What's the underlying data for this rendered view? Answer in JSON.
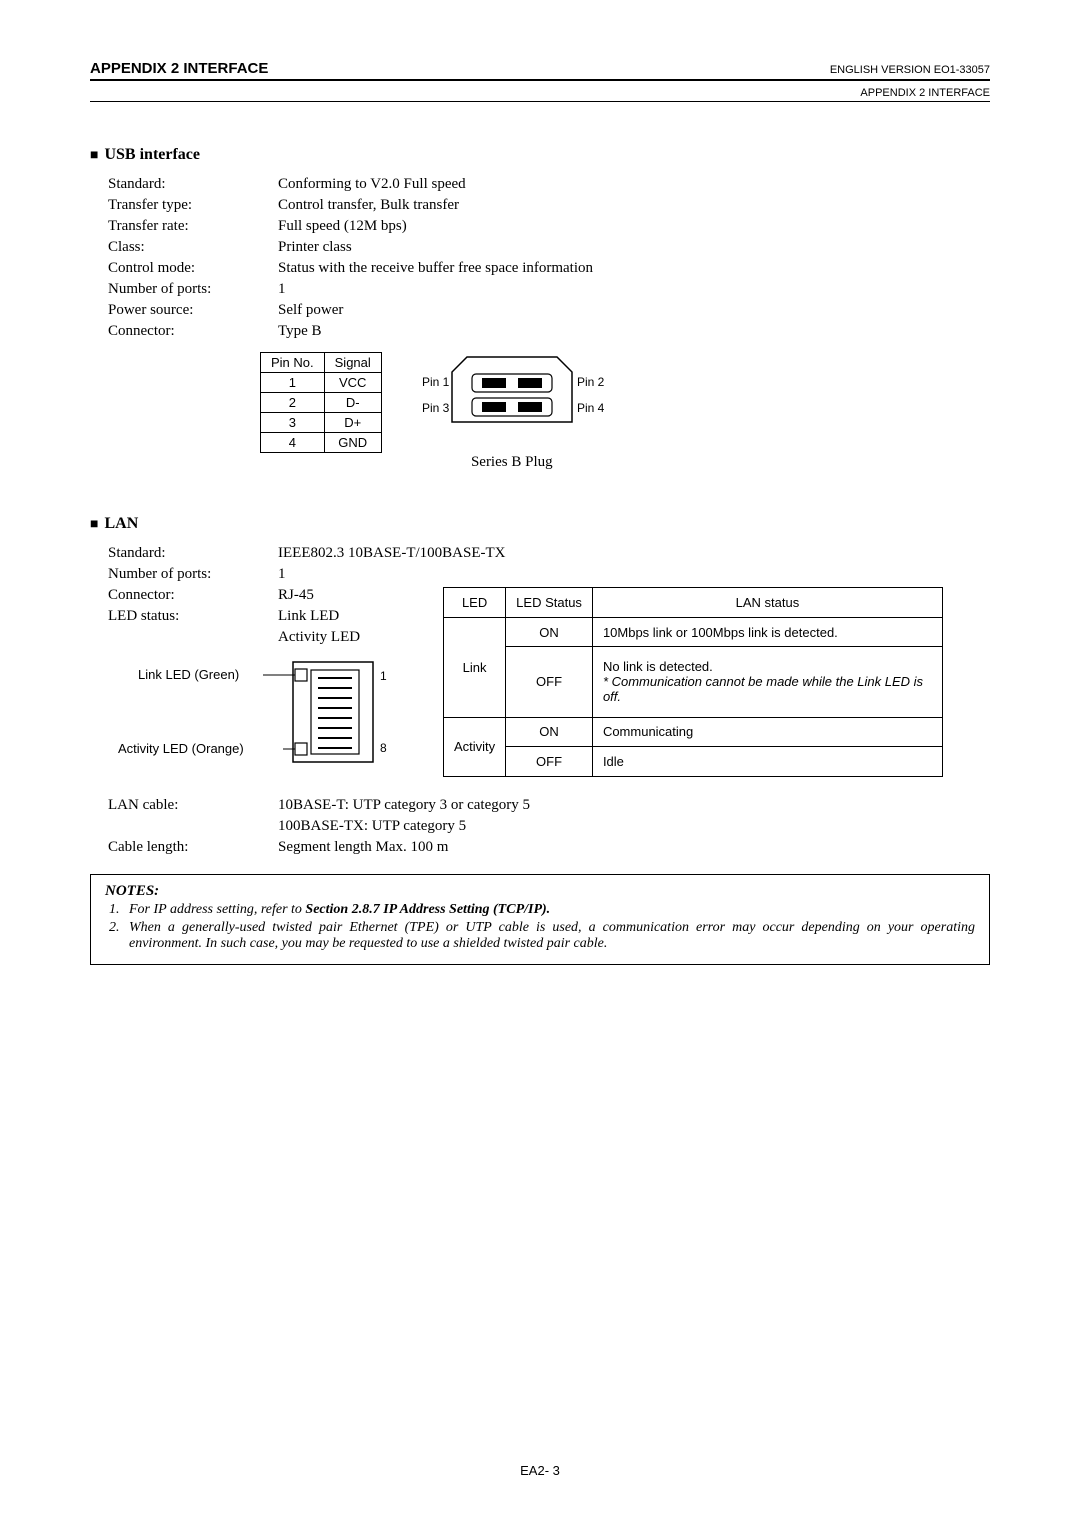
{
  "header": {
    "left": "APPENDIX 2  INTERFACE",
    "right_top": "ENGLISH VERSION EO1-33057",
    "right_sub": "APPENDIX 2  INTERFACE"
  },
  "usb": {
    "title": "USB interface",
    "specs": [
      {
        "label": "Standard:",
        "value": "Conforming to V2.0 Full speed"
      },
      {
        "label": "Transfer type:",
        "value": "Control transfer, Bulk transfer"
      },
      {
        "label": "Transfer rate:",
        "value": "Full speed (12M bps)"
      },
      {
        "label": "Class:",
        "value": "Printer class"
      },
      {
        "label": "Control mode:",
        "value": "Status with the receive buffer free space information"
      },
      {
        "label": "Number of ports:",
        "value": "1"
      },
      {
        "label": "Power source:",
        "value": "Self power"
      },
      {
        "label": "Connector:",
        "value": "Type B"
      }
    ],
    "pin_table": {
      "headers": [
        "Pin No.",
        "Signal"
      ],
      "rows": [
        [
          "1",
          "VCC"
        ],
        [
          "2",
          "D-"
        ],
        [
          "3",
          "D+"
        ],
        [
          "4",
          "GND"
        ]
      ]
    },
    "plug_labels": {
      "p1": "Pin 1",
      "p2": "Pin 2",
      "p3": "Pin 3",
      "p4": "Pin 4"
    },
    "plug_caption": "Series B Plug"
  },
  "lan": {
    "title": "LAN",
    "specs_top": [
      {
        "label": "Standard:",
        "value": "IEEE802.3  10BASE-T/100BASE-TX"
      },
      {
        "label": "Number of ports:",
        "value": "1"
      }
    ],
    "connector_label": "Connector:",
    "connector_value": "RJ-45",
    "ledstatus_label": "LED status:",
    "ledstatus_values": [
      "Link LED",
      "Activity LED"
    ],
    "led_table": {
      "headers": [
        "LED",
        "LED Status",
        "LAN status"
      ],
      "rows": [
        {
          "led": "Link",
          "status": "ON",
          "desc": "10Mbps link or 100Mbps link is detected."
        },
        {
          "led": "",
          "status": "OFF",
          "desc": "No link is detected.\n* Communication cannot be made while the Link LED is off.",
          "italic_part": "* Communication cannot be made while the Link LED is off."
        },
        {
          "led": "Activity",
          "status": "ON",
          "desc": "Communicating"
        },
        {
          "led": "",
          "status": "OFF",
          "desc": "Idle"
        }
      ]
    },
    "rj45_labels": {
      "link": "Link LED (Green)",
      "activity": "Activity LED (Orange)",
      "pin1": "1",
      "pin8": "8"
    },
    "specs_bottom": [
      {
        "label": "LAN cable:",
        "value": "10BASE-T: UTP category 3 or category 5"
      },
      {
        "label": "",
        "value": "100BASE-TX: UTP category 5"
      },
      {
        "label": "Cable length:",
        "value": "Segment length  Max. 100 m"
      }
    ]
  },
  "notes": {
    "title": "NOTES:",
    "items": [
      {
        "num": "1.",
        "pre": "For IP address setting, refer to ",
        "bold": "Section 2.8.7 IP Address Setting (TCP/IP).",
        "post": ""
      },
      {
        "num": "2.",
        "pre": "When a generally-used twisted pair Ethernet (TPE) or UTP cable is used, a communication error may occur depending on your operating environment.  In such case, you may be requested to use a shielded twisted pair cable.",
        "bold": "",
        "post": ""
      }
    ]
  },
  "footer": "EA2- 3",
  "colors": {
    "text": "#000000",
    "bg": "#ffffff",
    "border": "#000000"
  }
}
